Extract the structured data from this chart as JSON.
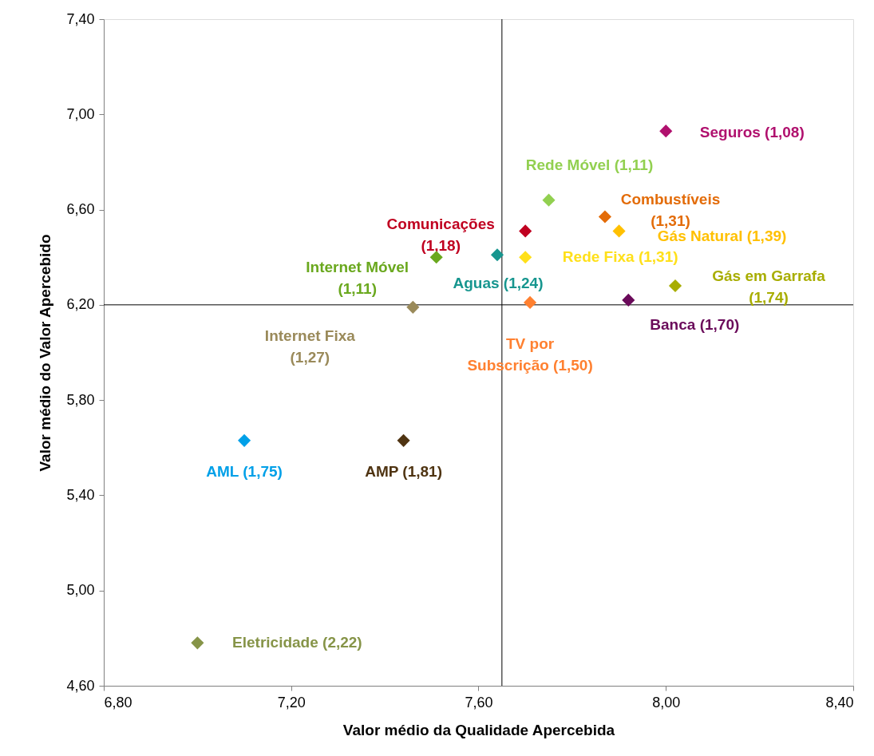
{
  "chart_data": {
    "type": "scatter",
    "xlabel": "Valor médio da Qualidade Apercebida",
    "ylabel": "Valor médio do Valor Apercebido",
    "xlim": [
      6.8,
      8.4
    ],
    "ylim": [
      4.6,
      7.4
    ],
    "xticks": [
      {
        "value": 6.8,
        "label": "6,80"
      },
      {
        "value": 7.2,
        "label": "7,20"
      },
      {
        "value": 7.6,
        "label": "7,60"
      },
      {
        "value": 8.0,
        "label": "8,00"
      },
      {
        "value": 8.4,
        "label": "8,40"
      }
    ],
    "yticks": [
      {
        "value": 4.6,
        "label": "4,60"
      },
      {
        "value": 5.0,
        "label": "5,00"
      },
      {
        "value": 5.4,
        "label": "5,40"
      },
      {
        "value": 5.8,
        "label": "5,80"
      },
      {
        "value": 6.2,
        "label": "6,20"
      },
      {
        "value": 6.6,
        "label": "6,60"
      },
      {
        "value": 7.0,
        "label": "7,00"
      },
      {
        "value": 7.4,
        "label": "7,40"
      }
    ],
    "grid": false,
    "marker": "diamond",
    "ref_lines": [
      {
        "axis": "x",
        "value": 7.65,
        "color": "#000000"
      },
      {
        "axis": "y",
        "value": 6.2,
        "color": "#000000"
      }
    ],
    "series": [
      {
        "name": "Seguros (1,08)",
        "color": "#b0106e",
        "x": [
          8.0
        ],
        "values": [
          6.93
        ]
      },
      {
        "name": "Rede Móvel (1,11)",
        "color": "#92d050",
        "x": [
          7.75
        ],
        "values": [
          6.64
        ]
      },
      {
        "name": "Combustíveis (1,31)",
        "color": "#e36c09",
        "x": [
          7.87
        ],
        "values": [
          6.57
        ]
      },
      {
        "name": "Comunicações (1,18)",
        "color": "#c00020",
        "x": [
          7.7
        ],
        "values": [
          6.51
        ]
      },
      {
        "name": "Gás Natural (1,39)",
        "color": "#ffc000",
        "x": [
          7.9
        ],
        "values": [
          6.51
        ]
      },
      {
        "name": "Aguas (1,24)",
        "color": "#17968f",
        "x": [
          7.64
        ],
        "values": [
          6.41
        ]
      },
      {
        "name": "Rede Fixa (1,31)",
        "color": "#ffe01a",
        "x": [
          7.7
        ],
        "values": [
          6.4
        ]
      },
      {
        "name": "Internet Móvel (1,11)",
        "color": "#6aa81e",
        "x": [
          7.51
        ],
        "values": [
          6.4
        ]
      },
      {
        "name": "Gás em Garrafa (1,74)",
        "color": "#a8ad00",
        "x": [
          8.02
        ],
        "values": [
          6.28
        ]
      },
      {
        "name": "Internet Fixa (1,27)",
        "color": "#9a8a5a",
        "x": [
          7.46
        ],
        "values": [
          6.19
        ]
      },
      {
        "name": "TV por Subscrição (1,50)",
        "color": "#ff8030",
        "x": [
          7.71
        ],
        "values": [
          6.21
        ]
      },
      {
        "name": "Banca (1,70)",
        "color": "#6a0a5a",
        "x": [
          7.92
        ],
        "values": [
          6.22
        ]
      },
      {
        "name": "AML  (1,75)",
        "color": "#00a0e8",
        "x": [
          7.1
        ],
        "values": [
          5.63
        ]
      },
      {
        "name": "AMP (1,81)",
        "color": "#4f3412",
        "x": [
          7.44
        ],
        "values": [
          5.63
        ]
      },
      {
        "name": "Eletricidade (2,22)",
        "color": "#869448",
        "x": [
          7.0
        ],
        "values": [
          4.78
        ]
      }
    ]
  }
}
